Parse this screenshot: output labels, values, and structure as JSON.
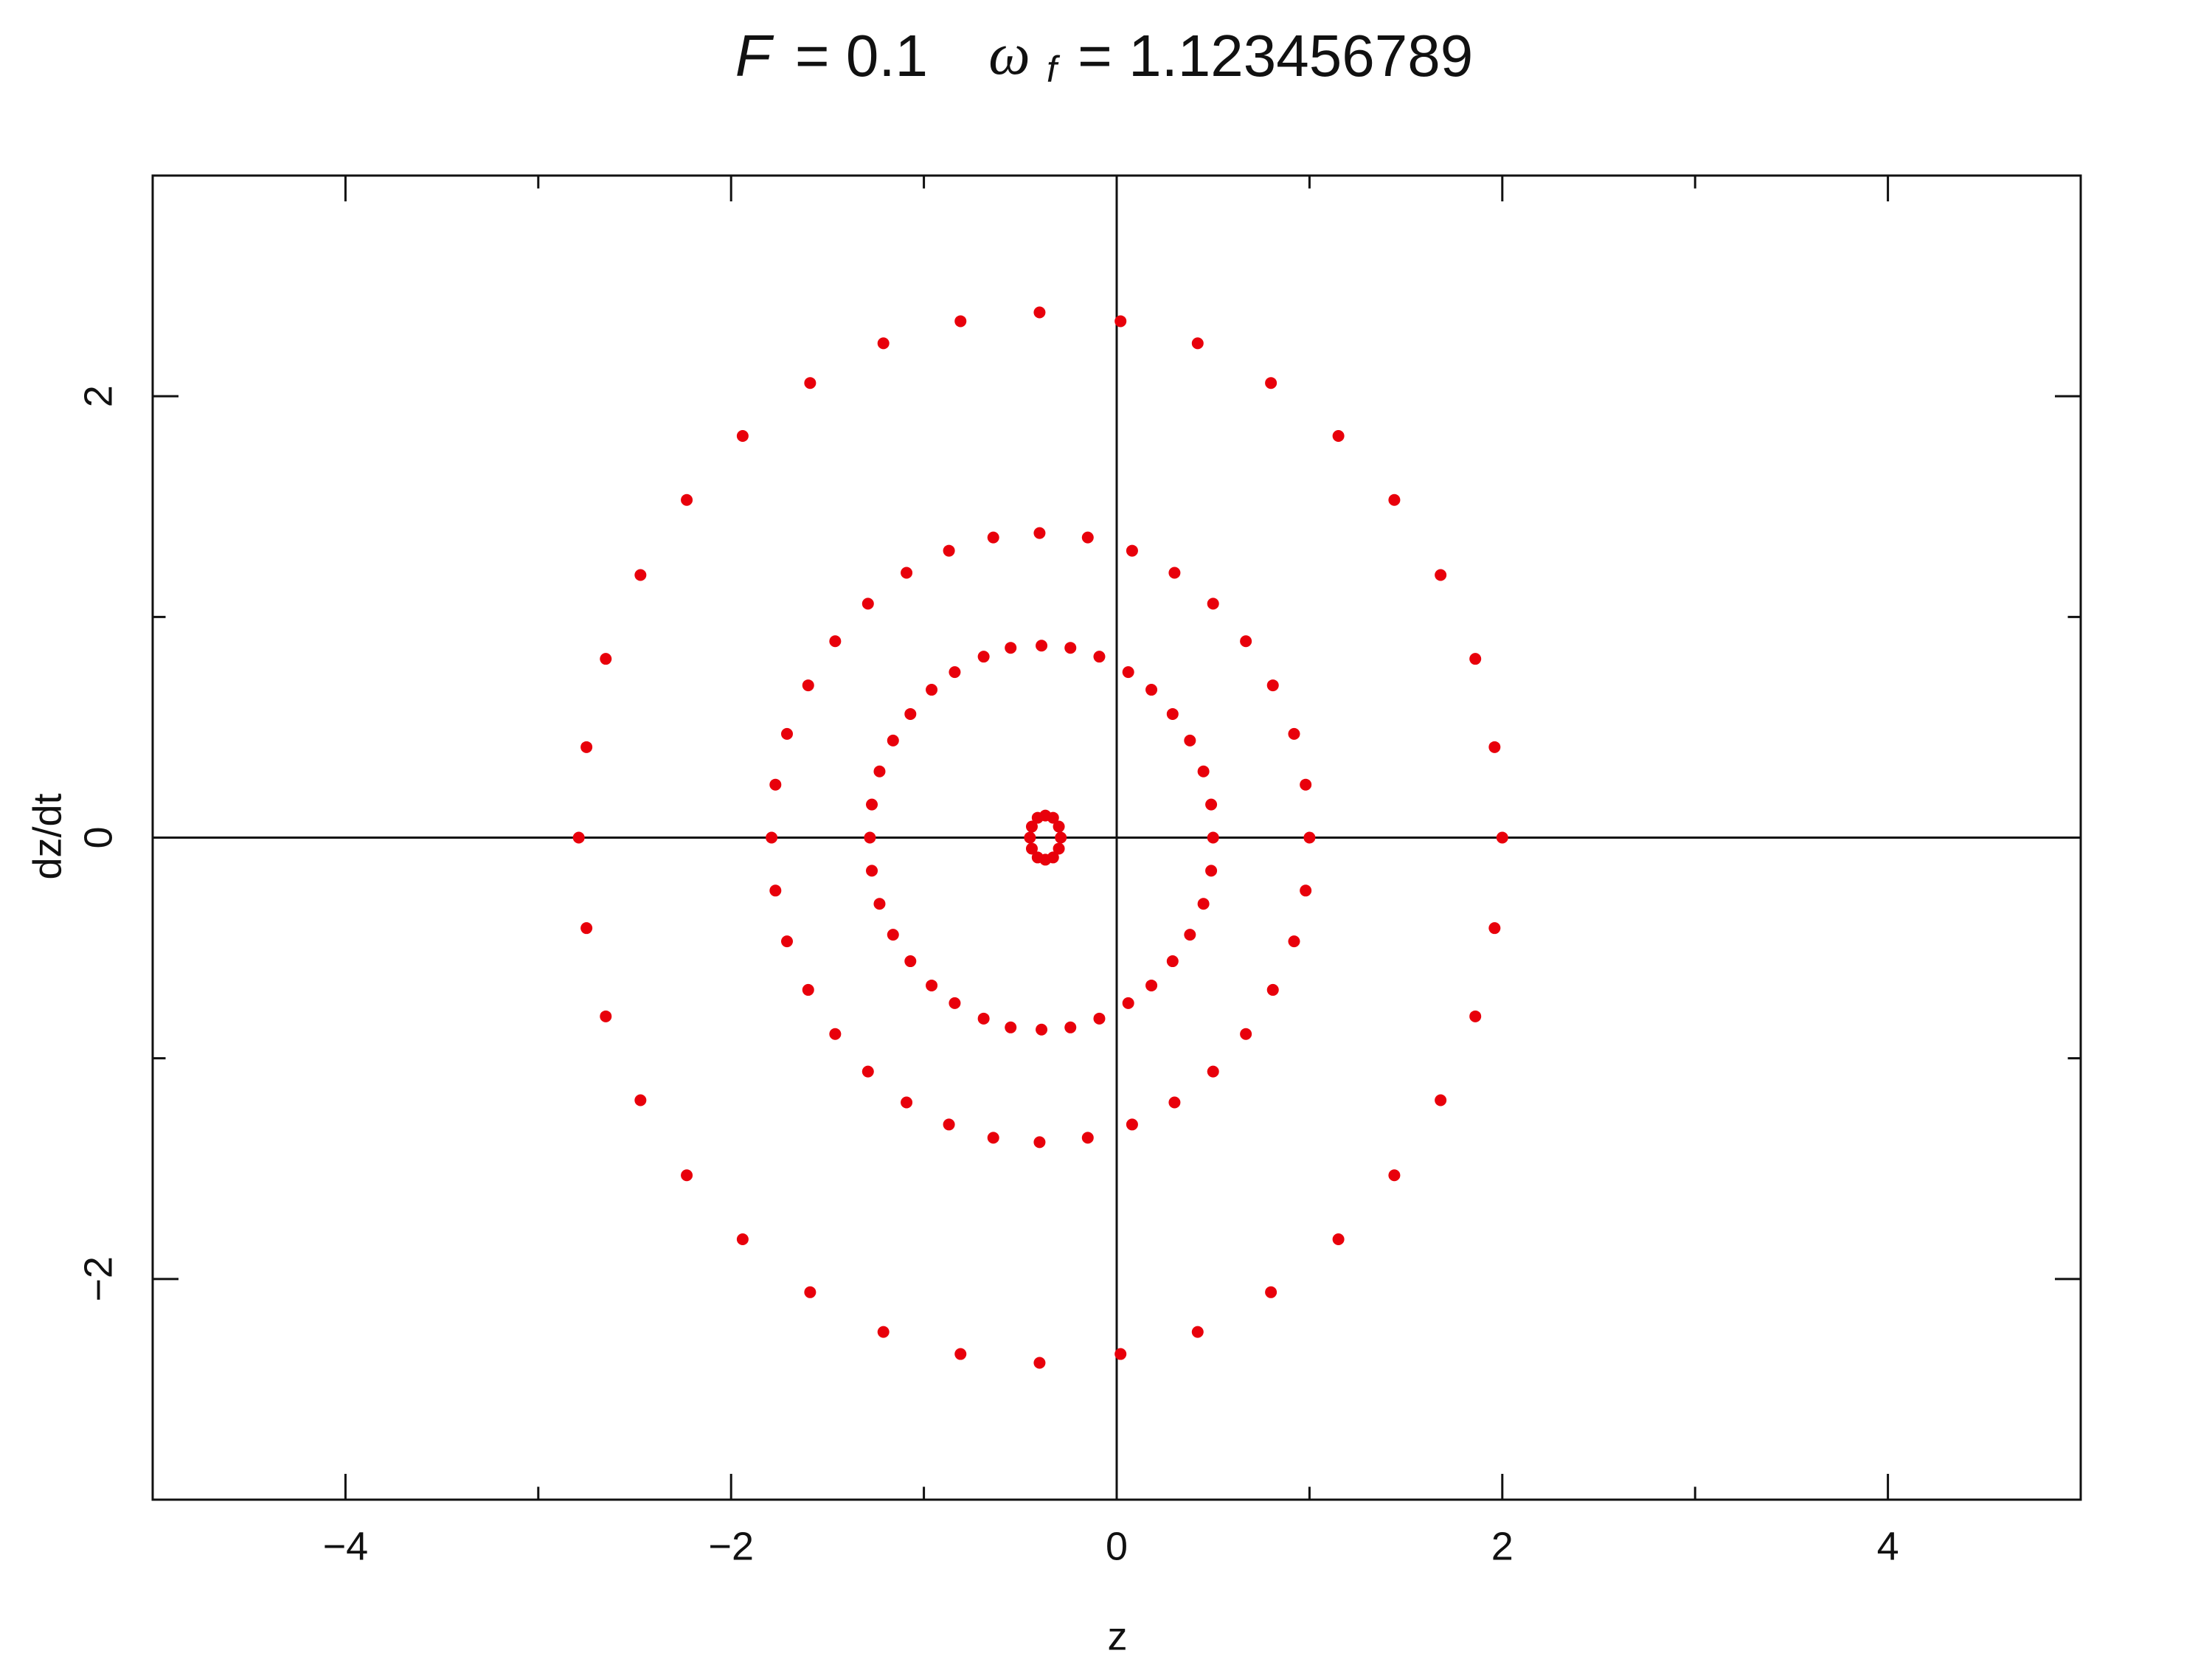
{
  "chart_data": {
    "type": "scatter",
    "title": [
      "F",
      "= 0.1",
      "ω",
      "f",
      "= 1.123456789"
    ],
    "xlabel": "z",
    "ylabel": "dz/dt",
    "xlim": [
      -5,
      5
    ],
    "ylim": [
      -3,
      3
    ],
    "xticks": [
      {
        "value": -4,
        "label": "−4"
      },
      {
        "value": -2,
        "label": "−2"
      },
      0,
      2,
      4
    ],
    "yticks": [
      {
        "value": -2,
        "label": "−2"
      },
      0,
      2
    ],
    "xminorticks": [
      -3,
      -1,
      1,
      3
    ],
    "yminorticks": [
      -1,
      1
    ],
    "zero_lines": true,
    "series": [
      {
        "color": "#e8000b",
        "x": [
          2.0,
          1.96,
          1.86,
          1.68,
          1.44,
          1.15,
          0.8,
          0.42,
          0.02,
          -0.4,
          -0.81,
          -1.21,
          -1.59,
          -1.94,
          -2.23,
          -2.47,
          -2.65,
          -2.75,
          -2.79,
          -2.75,
          -2.65,
          -2.47,
          -2.23,
          -1.94,
          -1.59,
          -1.21,
          -0.81,
          -0.4,
          0.02,
          0.42,
          0.8,
          1.15,
          1.44,
          1.68,
          1.86,
          1.96
        ],
        "values": [
          0,
          0.41,
          0.81,
          1.19,
          1.53,
          1.82,
          2.06,
          2.24,
          2.34,
          2.38,
          2.34,
          2.24,
          2.06,
          1.82,
          1.53,
          1.19,
          0.81,
          0.41,
          0,
          -0.41,
          -0.81,
          -1.19,
          -1.53,
          -1.82,
          -2.06,
          -2.24,
          -2.34,
          -2.38,
          -2.34,
          -2.24,
          -2.06,
          -1.82,
          -1.53,
          -1.19,
          -0.81,
          -0.41
        ]
      },
      {
        "color": "#e8000b",
        "x": [
          1.0,
          0.98,
          0.92,
          0.81,
          0.67,
          0.5,
          0.3,
          0.08,
          -0.15,
          -0.4,
          -0.64,
          -0.87,
          -1.09,
          -1.29,
          -1.46,
          -1.6,
          -1.71,
          -1.77,
          -1.79,
          -1.77,
          -1.71,
          -1.6,
          -1.46,
          -1.29,
          -1.09,
          -0.87,
          -0.64,
          -0.4,
          -0.15,
          0.08,
          0.3,
          0.5,
          0.67,
          0.81,
          0.92,
          0.98
        ],
        "values": [
          0,
          0.24,
          0.47,
          0.69,
          0.89,
          1.06,
          1.2,
          1.3,
          1.36,
          1.38,
          1.36,
          1.3,
          1.2,
          1.06,
          0.89,
          0.69,
          0.47,
          0.24,
          0,
          -0.24,
          -0.47,
          -0.69,
          -0.89,
          -1.06,
          -1.2,
          -1.3,
          -1.36,
          -1.38,
          -1.36,
          -1.3,
          -1.2,
          -1.06,
          -0.89,
          -0.69,
          -0.47,
          -0.24
        ]
      },
      {
        "color": "#e8000b",
        "x": [
          0.5,
          0.49,
          0.45,
          0.38,
          0.29,
          0.18,
          0.06,
          -0.09,
          -0.24,
          -0.39,
          -0.55,
          -0.69,
          -0.84,
          -0.96,
          -1.07,
          -1.16,
          -1.23,
          -1.27,
          -1.28,
          -1.27,
          -1.23,
          -1.16,
          -1.07,
          -0.96,
          -0.84,
          -0.69,
          -0.55,
          -0.39,
          -0.24,
          -0.09,
          0.06,
          0.18,
          0.29,
          0.38,
          0.45,
          0.49
        ],
        "values": [
          0,
          0.15,
          0.3,
          0.44,
          0.56,
          0.67,
          0.75,
          0.82,
          0.86,
          0.87,
          0.86,
          0.82,
          0.75,
          0.67,
          0.56,
          0.44,
          0.3,
          0.15,
          0,
          -0.15,
          -0.3,
          -0.44,
          -0.56,
          -0.67,
          -0.75,
          -0.82,
          -0.86,
          -0.87,
          -0.86,
          -0.82,
          -0.75,
          -0.67,
          -0.56,
          -0.44,
          -0.3,
          -0.15
        ]
      },
      {
        "color": "#e8000b",
        "x": [
          -0.29,
          -0.3,
          -0.33,
          -0.37,
          -0.41,
          -0.44,
          -0.45,
          -0.44,
          -0.41,
          -0.37,
          -0.33,
          -0.3
        ],
        "values": [
          0,
          0.05,
          0.09,
          0.1,
          0.09,
          0.05,
          0,
          -0.05,
          -0.09,
          -0.1,
          -0.09,
          -0.05
        ]
      }
    ]
  }
}
